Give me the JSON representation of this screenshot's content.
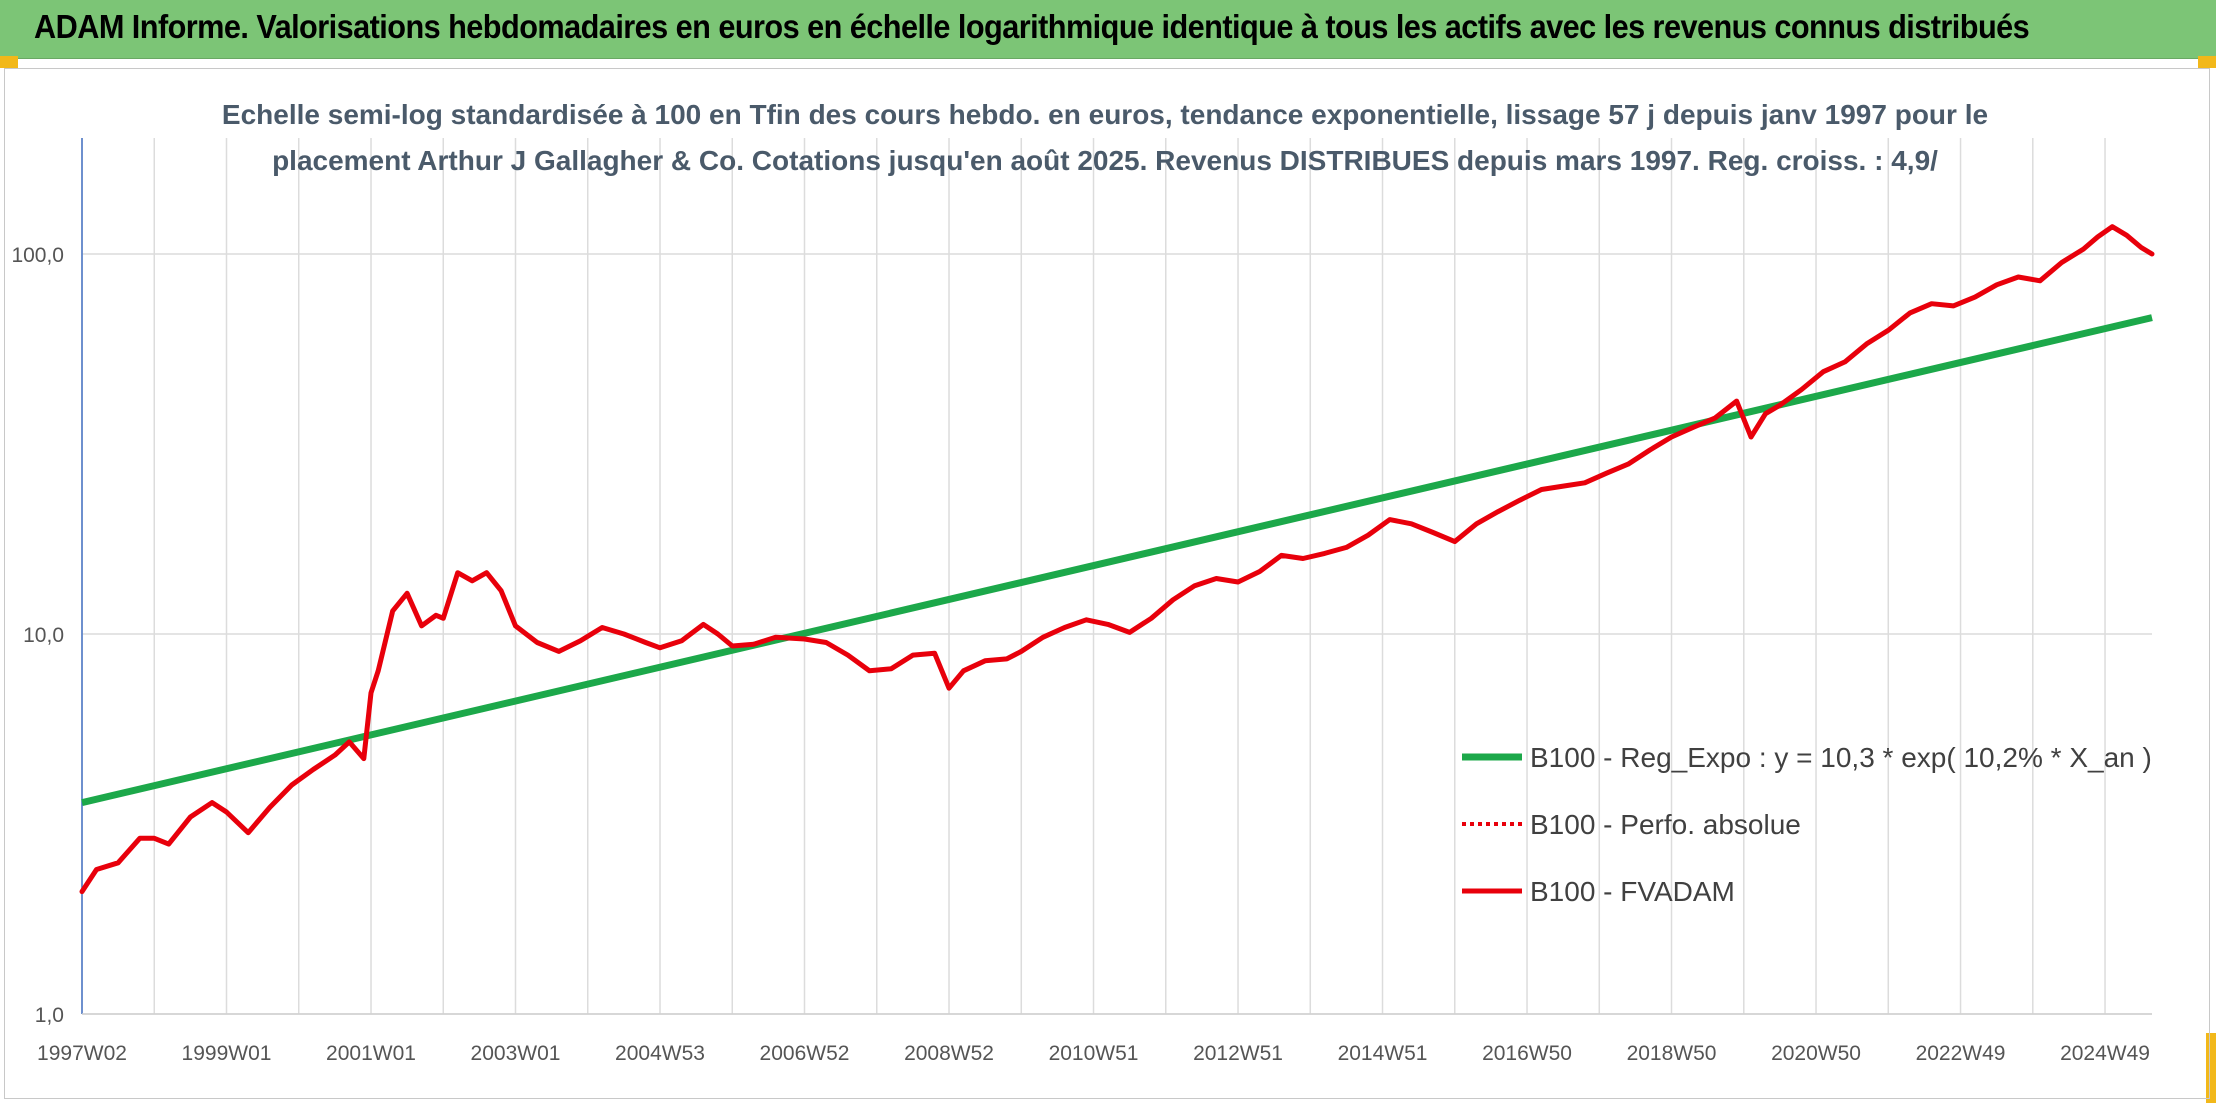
{
  "header": {
    "title": "ADAM Informe. Valorisations hebdomadaires en euros en échelle logarithmique identique à tous les actifs avec les revenus connus distribués"
  },
  "colors": {
    "banner": "#7cc576",
    "corner": "#f2b81a",
    "regression": "#1ca84a",
    "fvadam": "#e8000b",
    "perfo": "#e8000b",
    "grid": "#dcdcdc",
    "axis": "#4472c4"
  },
  "chart_data": {
    "type": "line",
    "title": "Echelle semi-log standardisée à 100 en Tfin des cours hebdo. en euros, tendance exponentielle, lissage 57 j depuis janv 1997 pour le placement Arthur J Gallagher & Co. Cotations jusqu'en août 2025. Revenus DISTRIBUES depuis mars 1997. Reg. croiss. : 4,9/",
    "title_lines": [
      "Echelle semi-log standardisée à 100 en Tfin des cours hebdo. en euros, tendance exponentielle, lissage 57 j depuis janv 1997 pour le",
      "placement Arthur J Gallagher & Co. Cotations jusqu'en août 2025. Revenus DISTRIBUES depuis mars 1997. Reg. croiss. : 4,9/"
    ],
    "y_scale": "log",
    "ylim": [
      1,
      200
    ],
    "y_ticks": [
      "1,0",
      "10,0",
      "100,0"
    ],
    "y_tick_values": [
      1,
      10,
      100
    ],
    "x_ticks": [
      "1997W02",
      "1999W01",
      "2001W01",
      "2003W01",
      "2004W53",
      "2006W52",
      "2008W52",
      "2010W51",
      "2012W51",
      "2014W51",
      "2016W50",
      "2018W50",
      "2020W50",
      "2022W49",
      "2024W49"
    ],
    "x_tick_years": [
      1997.0,
      1999.0,
      2001.0,
      2003.0,
      2005.0,
      2007.0,
      2009.0,
      2011.0,
      2013.0,
      2015.0,
      2017.0,
      2019.0,
      2021.0,
      2023.0,
      2025.0
    ],
    "xlim": [
      1997.0,
      2025.65
    ],
    "grid": "vertical and horizontal",
    "legend_position": "lower-right",
    "legend": [
      {
        "label": "B100 - Reg_Expo : y = 10,3 * exp( 10,2% *  X_an )",
        "style": "solid-thick",
        "color": "#1ca84a"
      },
      {
        "label": "B100 - Perfo. absolue",
        "style": "dotted",
        "color": "#e8000b"
      },
      {
        "label": "B100 - FVADAM",
        "style": "solid",
        "color": "#e8000b"
      }
    ],
    "series": [
      {
        "name": "B100 - Reg_Expo : y = 10,3 * exp( 10,2% *  X_an )",
        "type": "line",
        "x": [
          1997.0,
          2025.65
        ],
        "y": [
          3.6,
          68.0
        ]
      },
      {
        "name": "B100 - FVADAM",
        "type": "line",
        "x": [
          1997.0,
          1997.2,
          1997.5,
          1997.8,
          1998.0,
          1998.2,
          1998.5,
          1998.8,
          1999.0,
          1999.3,
          1999.6,
          1999.9,
          2000.2,
          2000.5,
          2000.7,
          2000.9,
          2001.0,
          2001.1,
          2001.3,
          2001.5,
          2001.7,
          2001.9,
          2002.0,
          2002.2,
          2002.4,
          2002.6,
          2002.8,
          2003.0,
          2003.3,
          2003.6,
          2003.9,
          2004.2,
          2004.5,
          2004.8,
          2005.0,
          2005.3,
          2005.6,
          2005.8,
          2006.0,
          2006.3,
          2006.6,
          2007.0,
          2007.3,
          2007.6,
          2007.9,
          2008.2,
          2008.5,
          2008.8,
          2009.0,
          2009.2,
          2009.5,
          2009.8,
          2010.0,
          2010.3,
          2010.6,
          2010.9,
          2011.2,
          2011.5,
          2011.8,
          2012.1,
          2012.4,
          2012.7,
          2013.0,
          2013.3,
          2013.6,
          2013.9,
          2014.2,
          2014.5,
          2014.8,
          2015.1,
          2015.4,
          2015.7,
          2016.0,
          2016.3,
          2016.6,
          2016.9,
          2017.2,
          2017.5,
          2017.8,
          2018.1,
          2018.4,
          2018.7,
          2019.0,
          2019.3,
          2019.6,
          2019.9,
          2020.1,
          2020.3,
          2020.5,
          2020.8,
          2021.1,
          2021.4,
          2021.7,
          2022.0,
          2022.3,
          2022.6,
          2022.9,
          2023.2,
          2023.5,
          2023.8,
          2024.1,
          2024.4,
          2024.7,
          2024.9,
          2025.1,
          2025.3,
          2025.5,
          2025.65
        ],
        "y": [
          2.1,
          2.4,
          2.5,
          2.9,
          2.9,
          2.8,
          3.3,
          3.6,
          3.4,
          3.0,
          3.5,
          4.0,
          4.4,
          4.8,
          5.2,
          4.7,
          7.0,
          8.0,
          11.5,
          12.8,
          10.5,
          11.2,
          11.0,
          14.5,
          13.8,
          14.5,
          13.0,
          10.5,
          9.5,
          9.0,
          9.6,
          10.4,
          10.0,
          9.5,
          9.2,
          9.6,
          10.6,
          10.0,
          9.3,
          9.4,
          9.8,
          9.7,
          9.5,
          8.8,
          8.0,
          8.1,
          8.8,
          8.9,
          7.2,
          8.0,
          8.5,
          8.6,
          9.0,
          9.8,
          10.4,
          10.9,
          10.6,
          10.1,
          11.0,
          12.3,
          13.4,
          14.0,
          13.7,
          14.6,
          16.1,
          15.8,
          16.3,
          16.9,
          18.2,
          20.0,
          19.5,
          18.5,
          17.5,
          19.5,
          21.0,
          22.5,
          24.0,
          24.5,
          25.0,
          26.5,
          28.0,
          30.5,
          33.0,
          35.0,
          37.0,
          41.0,
          33.0,
          38.0,
          40.0,
          44.0,
          49.0,
          52.0,
          58.0,
          63.0,
          70.0,
          74.0,
          73.0,
          77.0,
          83.0,
          87.0,
          85.0,
          95.0,
          103.0,
          111.0,
          118.0,
          112.0,
          104.0,
          100.0
        ]
      }
    ]
  }
}
